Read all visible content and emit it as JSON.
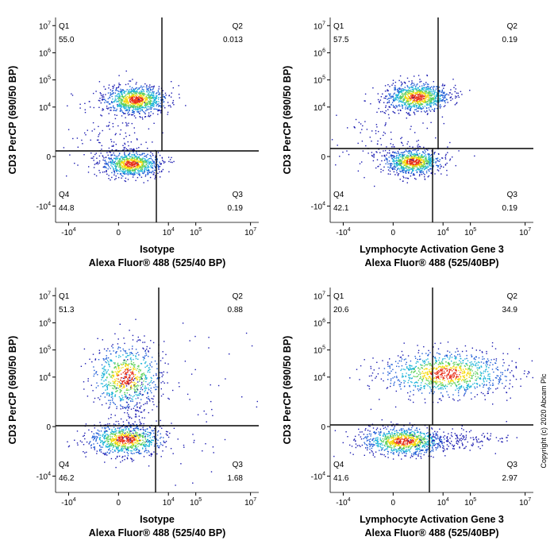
{
  "chart_data": [
    {
      "type": "flow-quadrant",
      "x_label": [
        "Isotype",
        "Alexa Fluor® 488  (525/40 BP)"
      ],
      "y_label": "CD3 PerCP  (690/50 BP)",
      "categories": [
        "Q1",
        "Q2",
        "Q3",
        "Q4"
      ],
      "values": [
        55.0,
        0.013,
        0.19,
        44.8
      ],
      "value_labels": [
        "55.0",
        "0.013",
        "0.19",
        "44.8"
      ],
      "xscale": "logicle",
      "xlim": [
        -30000,
        20000000
      ],
      "ylim": [
        -40000,
        20000000
      ],
      "xticks": [
        {
          "value": -10000,
          "label": "-10",
          "exp": "4"
        },
        0,
        {
          "value": 10000,
          "label": "10",
          "exp": "4"
        },
        {
          "value": 100000,
          "label": "10",
          "exp": "5"
        },
        {
          "value": 10000000,
          "label": "10",
          "exp": "7"
        }
      ],
      "yticks": [
        {
          "value": 10000000,
          "label": "10",
          "exp": "7"
        },
        {
          "value": 1000000,
          "label": "10",
          "exp": "6"
        },
        {
          "value": 100000,
          "label": "10",
          "exp": "5"
        },
        {
          "value": 10000,
          "label": "10",
          "exp": "4"
        },
        0,
        {
          "value": -10000,
          "label": "-10",
          "exp": "4"
        }
      ]
    },
    {
      "type": "flow-quadrant",
      "x_label": [
        "Lymphocyte Activation Gene 3",
        "Alexa Fluor® 488  (525/40BP)"
      ],
      "y_label": "CD3 PerCP  (690/50 BP)",
      "categories": [
        "Q1",
        "Q2",
        "Q3",
        "Q4"
      ],
      "values": [
        57.5,
        0.19,
        0.19,
        42.1
      ],
      "value_labels": [
        "57.5",
        "0.19",
        "0.19",
        "42.1"
      ],
      "xscale": "logicle",
      "xlim": [
        -30000,
        20000000
      ],
      "ylim": [
        -40000,
        20000000
      ],
      "xticks": [
        {
          "value": -10000,
          "label": "-10",
          "exp": "4"
        },
        0,
        {
          "value": 10000,
          "label": "10",
          "exp": "4"
        },
        {
          "value": 100000,
          "label": "10",
          "exp": "5"
        },
        {
          "value": 10000000,
          "label": "10",
          "exp": "7"
        }
      ],
      "yticks": [
        {
          "value": 10000000,
          "label": "10",
          "exp": "7"
        },
        {
          "value": 1000000,
          "label": "10",
          "exp": "6"
        },
        {
          "value": 100000,
          "label": "10",
          "exp": "5"
        },
        {
          "value": 10000,
          "label": "10",
          "exp": "4"
        },
        0,
        {
          "value": -10000,
          "label": "-10",
          "exp": "4"
        }
      ]
    },
    {
      "type": "flow-quadrant",
      "x_label": [
        "Isotype",
        "Alexa Fluor® 488  (525/40 BP)"
      ],
      "y_label": "CD3 PerCP  (690/50 BP)",
      "categories": [
        "Q1",
        "Q2",
        "Q3",
        "Q4"
      ],
      "values": [
        51.3,
        0.88,
        1.68,
        46.2
      ],
      "value_labels": [
        "51.3",
        "0.88",
        "1.68",
        "46.2"
      ],
      "xscale": "logicle",
      "xlim": [
        -30000,
        20000000
      ],
      "ylim": [
        -40000,
        20000000
      ],
      "xticks": [
        {
          "value": -10000,
          "label": "-10",
          "exp": "4"
        },
        0,
        {
          "value": 10000,
          "label": "10",
          "exp": "4"
        },
        {
          "value": 100000,
          "label": "10",
          "exp": "5"
        },
        {
          "value": 10000000,
          "label": "10",
          "exp": "7"
        }
      ],
      "yticks": [
        {
          "value": 10000000,
          "label": "10",
          "exp": "7"
        },
        {
          "value": 1000000,
          "label": "10",
          "exp": "6"
        },
        {
          "value": 100000,
          "label": "10",
          "exp": "5"
        },
        {
          "value": 10000,
          "label": "10",
          "exp": "4"
        },
        0,
        {
          "value": -10000,
          "label": "-10",
          "exp": "4"
        }
      ]
    },
    {
      "type": "flow-quadrant",
      "x_label": [
        "Lymphocyte Activation Gene 3",
        "Alexa Fluor® 488  (525/40BP)"
      ],
      "y_label": "CD3 PerCP  (690/50 BP)",
      "categories": [
        "Q1",
        "Q2",
        "Q3",
        "Q4"
      ],
      "values": [
        20.6,
        34.9,
        2.97,
        41.6
      ],
      "value_labels": [
        "20.6",
        "34.9",
        "2.97",
        "41.6"
      ],
      "xscale": "logicle",
      "xlim": [
        -30000,
        20000000
      ],
      "ylim": [
        -40000,
        20000000
      ],
      "xticks": [
        {
          "value": -10000,
          "label": "-10",
          "exp": "4"
        },
        0,
        {
          "value": 10000,
          "label": "10",
          "exp": "4"
        },
        {
          "value": 100000,
          "label": "10",
          "exp": "5"
        },
        {
          "value": 10000000,
          "label": "10",
          "exp": "7"
        }
      ],
      "yticks": [
        {
          "value": 10000000,
          "label": "10",
          "exp": "7"
        },
        {
          "value": 1000000,
          "label": "10",
          "exp": "6"
        },
        {
          "value": 100000,
          "label": "10",
          "exp": "5"
        },
        {
          "value": 10000,
          "label": "10",
          "exp": "4"
        },
        0,
        {
          "value": -10000,
          "label": "-10",
          "exp": "4"
        }
      ]
    }
  ],
  "copyright": "Copyright (c) 2020 Abcam Plc"
}
